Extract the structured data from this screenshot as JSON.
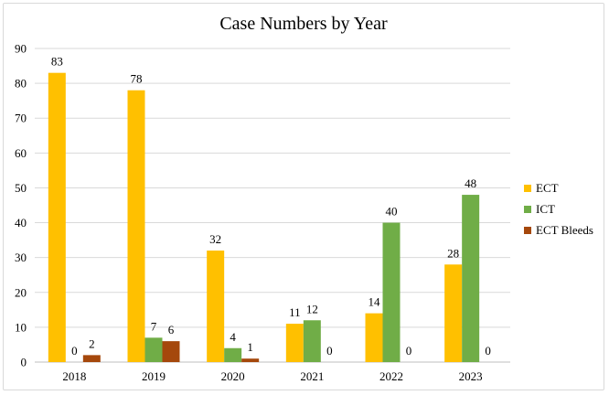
{
  "chart_data": {
    "type": "bar",
    "title": "Case Numbers by Year",
    "xlabel": "",
    "ylabel": "",
    "categories": [
      "2018",
      "2019",
      "2020",
      "2021",
      "2022",
      "2023"
    ],
    "ylim": [
      0,
      90
    ],
    "yticks": [
      0,
      10,
      20,
      30,
      40,
      50,
      60,
      70,
      80,
      90
    ],
    "grid": true,
    "legend_position": "right",
    "series": [
      {
        "name": "ECT",
        "color": "#FFC000",
        "values": [
          83,
          78,
          32,
          11,
          14,
          28
        ]
      },
      {
        "name": "ICT",
        "color": "#70AD47",
        "values": [
          0,
          7,
          4,
          12,
          40,
          48
        ]
      },
      {
        "name": "ECT Bleeds",
        "color": "#A5480C",
        "values": [
          2,
          6,
          1,
          0,
          0,
          0
        ]
      }
    ]
  }
}
